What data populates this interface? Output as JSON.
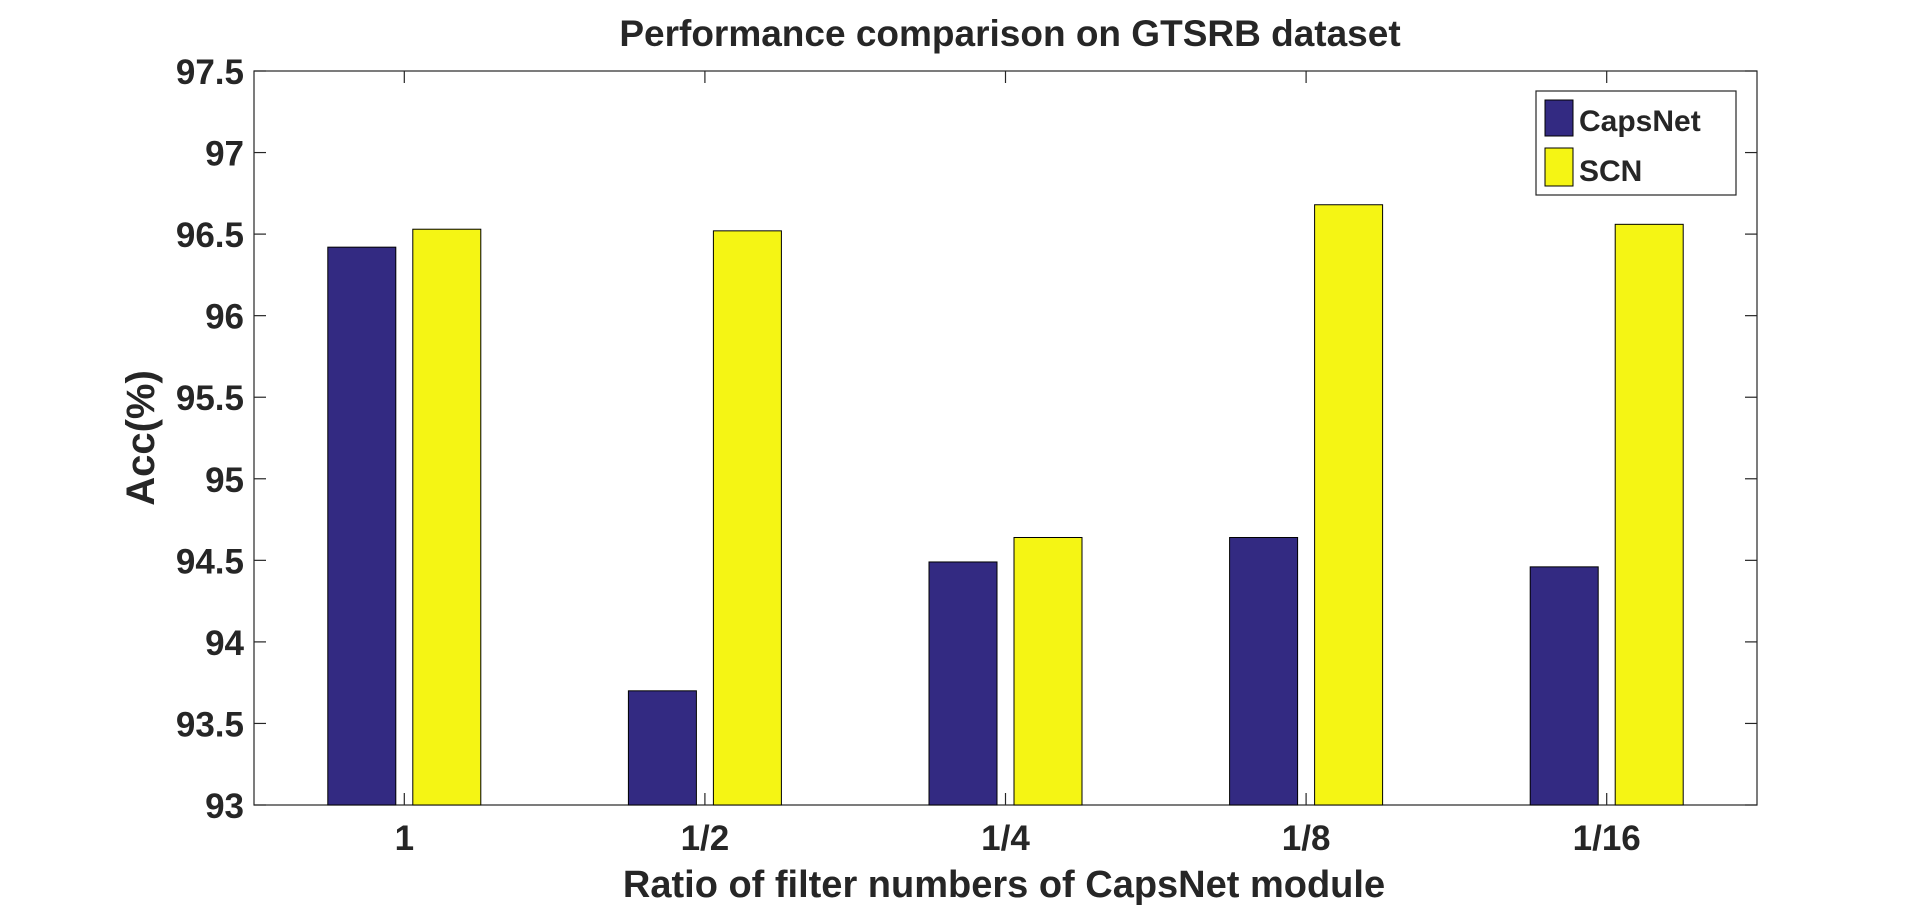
{
  "chart_data": {
    "type": "bar",
    "title": "Performance comparison on GTSRB dataset",
    "xlabel": "Ratio of filter numbers of CapsNet module",
    "ylabel": "Acc(%)",
    "categories": [
      "1",
      "1/2",
      "1/4",
      "1/8",
      "1/16"
    ],
    "series": [
      {
        "name": "CapsNet",
        "color": "#332a82",
        "values": [
          96.42,
          93.7,
          94.49,
          94.64,
          94.46
        ]
      },
      {
        "name": "SCN",
        "color": "#f5f514",
        "values": [
          96.53,
          96.52,
          94.64,
          96.68,
          96.56
        ]
      }
    ],
    "ylim": [
      93,
      97.5
    ],
    "yticks": [
      93,
      93.5,
      94,
      94.5,
      95,
      95.5,
      96,
      96.5,
      97,
      97.5
    ],
    "ytick_labels": [
      "93",
      "93.5",
      "94",
      "94.5",
      "95",
      "95.5",
      "96",
      "96.5",
      "97",
      "97.5"
    ],
    "grid": false,
    "legend_position": "top-right"
  }
}
